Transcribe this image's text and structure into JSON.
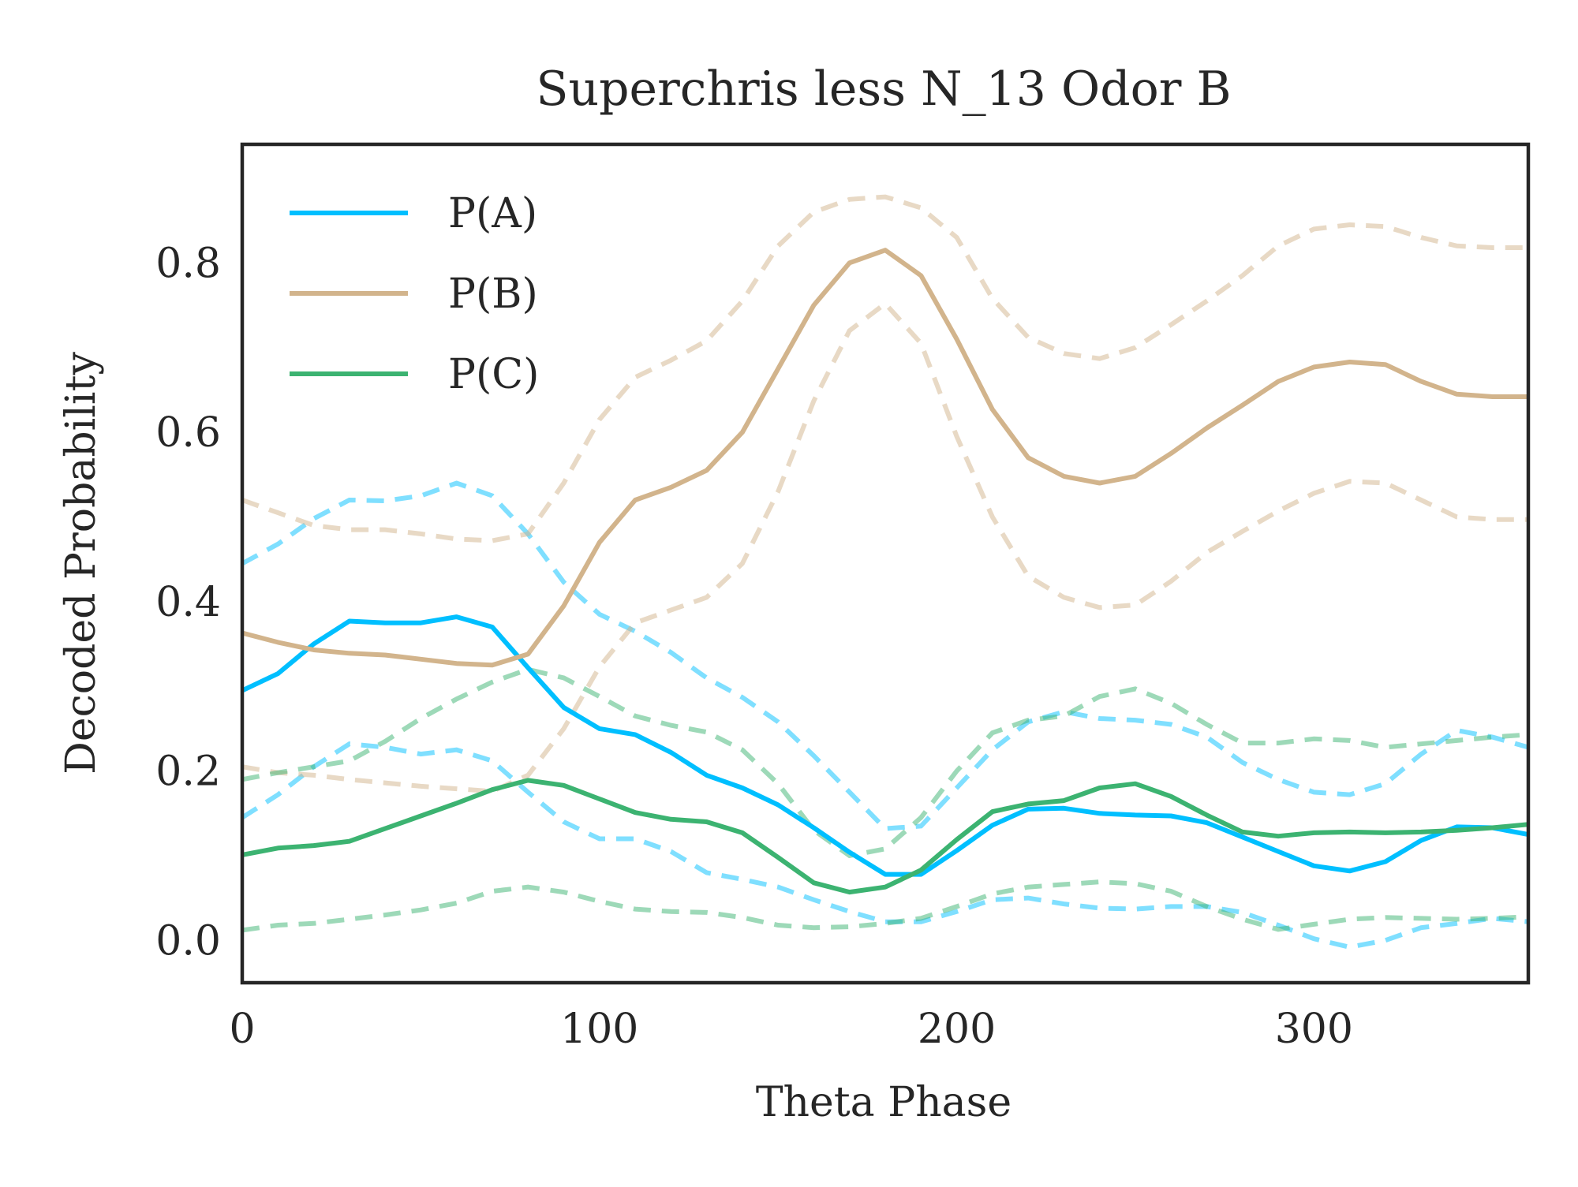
{
  "chart_data": {
    "type": "line",
    "title": "Superchris less N_13 Odor B",
    "xlabel": "Theta Phase",
    "ylabel": "Decoded Probability",
    "xlim": [
      0,
      360
    ],
    "ylim": [
      -0.05,
      0.94
    ],
    "xticks": [
      0,
      100,
      200,
      300
    ],
    "yticks": [
      0.0,
      0.2,
      0.4,
      0.6,
      0.8
    ],
    "xtick_labels": [
      "0",
      "100",
      "200",
      "300"
    ],
    "ytick_labels": [
      "0.0",
      "0.2",
      "0.4",
      "0.6",
      "0.8"
    ],
    "grid": false,
    "legend_position": "top-left",
    "x": [
      0,
      10,
      20,
      30,
      40,
      50,
      60,
      70,
      80,
      90,
      100,
      110,
      120,
      130,
      140,
      150,
      160,
      170,
      180,
      190,
      200,
      210,
      220,
      230,
      240,
      250,
      260,
      270,
      280,
      290,
      300,
      310,
      320,
      330,
      340,
      350,
      360
    ],
    "series": [
      {
        "name": "P(A)",
        "color": "#00bfff",
        "values": [
          0.295,
          0.315,
          0.35,
          0.377,
          0.375,
          0.375,
          0.382,
          0.37,
          0.322,
          0.275,
          0.25,
          0.243,
          0.222,
          0.195,
          0.18,
          0.16,
          0.133,
          0.104,
          0.078,
          0.078,
          0.106,
          0.136,
          0.155,
          0.156,
          0.15,
          0.148,
          0.147,
          0.139,
          0.122,
          0.105,
          0.088,
          0.082,
          0.093,
          0.118,
          0.134,
          0.133,
          0.125
        ],
        "upper": [
          0.445,
          0.468,
          0.498,
          0.52,
          0.519,
          0.525,
          0.54,
          0.525,
          0.48,
          0.423,
          0.385,
          0.365,
          0.34,
          0.31,
          0.287,
          0.258,
          0.218,
          0.175,
          0.132,
          0.135,
          0.18,
          0.225,
          0.258,
          0.27,
          0.262,
          0.26,
          0.255,
          0.24,
          0.21,
          0.19,
          0.175,
          0.172,
          0.185,
          0.22,
          0.248,
          0.24,
          0.228
        ],
        "lower": [
          0.145,
          0.172,
          0.205,
          0.232,
          0.228,
          0.22,
          0.225,
          0.212,
          0.175,
          0.14,
          0.12,
          0.12,
          0.105,
          0.08,
          0.072,
          0.063,
          0.048,
          0.034,
          0.022,
          0.022,
          0.034,
          0.048,
          0.05,
          0.043,
          0.038,
          0.037,
          0.04,
          0.04,
          0.033,
          0.018,
          0.002,
          -0.008,
          0.0,
          0.015,
          0.02,
          0.026,
          0.022
        ]
      },
      {
        "name": "P(B)",
        "color": "#d2b48c",
        "values": [
          0.363,
          0.352,
          0.343,
          0.339,
          0.337,
          0.332,
          0.327,
          0.325,
          0.338,
          0.395,
          0.47,
          0.52,
          0.535,
          0.555,
          0.6,
          0.675,
          0.75,
          0.8,
          0.815,
          0.785,
          0.71,
          0.627,
          0.57,
          0.548,
          0.54,
          0.548,
          0.575,
          0.605,
          0.632,
          0.66,
          0.677,
          0.683,
          0.68,
          0.66,
          0.645,
          0.642,
          0.642
        ],
        "upper": [
          0.52,
          0.505,
          0.49,
          0.485,
          0.485,
          0.48,
          0.474,
          0.472,
          0.48,
          0.54,
          0.615,
          0.665,
          0.685,
          0.708,
          0.755,
          0.82,
          0.86,
          0.875,
          0.878,
          0.865,
          0.83,
          0.758,
          0.712,
          0.693,
          0.687,
          0.7,
          0.727,
          0.755,
          0.785,
          0.82,
          0.84,
          0.845,
          0.843,
          0.83,
          0.82,
          0.818,
          0.818
        ],
        "lower": [
          0.205,
          0.198,
          0.195,
          0.19,
          0.186,
          0.182,
          0.179,
          0.176,
          0.195,
          0.25,
          0.323,
          0.375,
          0.39,
          0.405,
          0.445,
          0.53,
          0.637,
          0.72,
          0.752,
          0.705,
          0.595,
          0.5,
          0.43,
          0.405,
          0.393,
          0.396,
          0.424,
          0.458,
          0.483,
          0.507,
          0.528,
          0.542,
          0.54,
          0.52,
          0.5,
          0.497,
          0.497
        ]
      },
      {
        "name": "P(C)",
        "color": "#3cb371",
        "values": [
          0.101,
          0.109,
          0.112,
          0.117,
          0.132,
          0.147,
          0.162,
          0.178,
          0.189,
          0.183,
          0.167,
          0.151,
          0.143,
          0.14,
          0.127,
          0.098,
          0.068,
          0.057,
          0.063,
          0.083,
          0.119,
          0.152,
          0.161,
          0.165,
          0.18,
          0.185,
          0.17,
          0.148,
          0.128,
          0.123,
          0.127,
          0.128,
          0.127,
          0.128,
          0.13,
          0.133,
          0.137
        ],
        "upper": [
          0.19,
          0.198,
          0.205,
          0.212,
          0.235,
          0.262,
          0.285,
          0.305,
          0.32,
          0.31,
          0.288,
          0.265,
          0.254,
          0.246,
          0.225,
          0.185,
          0.13,
          0.1,
          0.108,
          0.145,
          0.2,
          0.245,
          0.26,
          0.265,
          0.288,
          0.297,
          0.28,
          0.255,
          0.233,
          0.233,
          0.238,
          0.236,
          0.228,
          0.232,
          0.236,
          0.24,
          0.243
        ],
        "lower": [
          0.012,
          0.018,
          0.02,
          0.025,
          0.03,
          0.036,
          0.044,
          0.058,
          0.063,
          0.057,
          0.046,
          0.037,
          0.034,
          0.033,
          0.027,
          0.018,
          0.015,
          0.016,
          0.02,
          0.026,
          0.04,
          0.055,
          0.063,
          0.066,
          0.069,
          0.067,
          0.058,
          0.04,
          0.025,
          0.013,
          0.019,
          0.025,
          0.027,
          0.026,
          0.025,
          0.026,
          0.028
        ]
      }
    ]
  }
}
